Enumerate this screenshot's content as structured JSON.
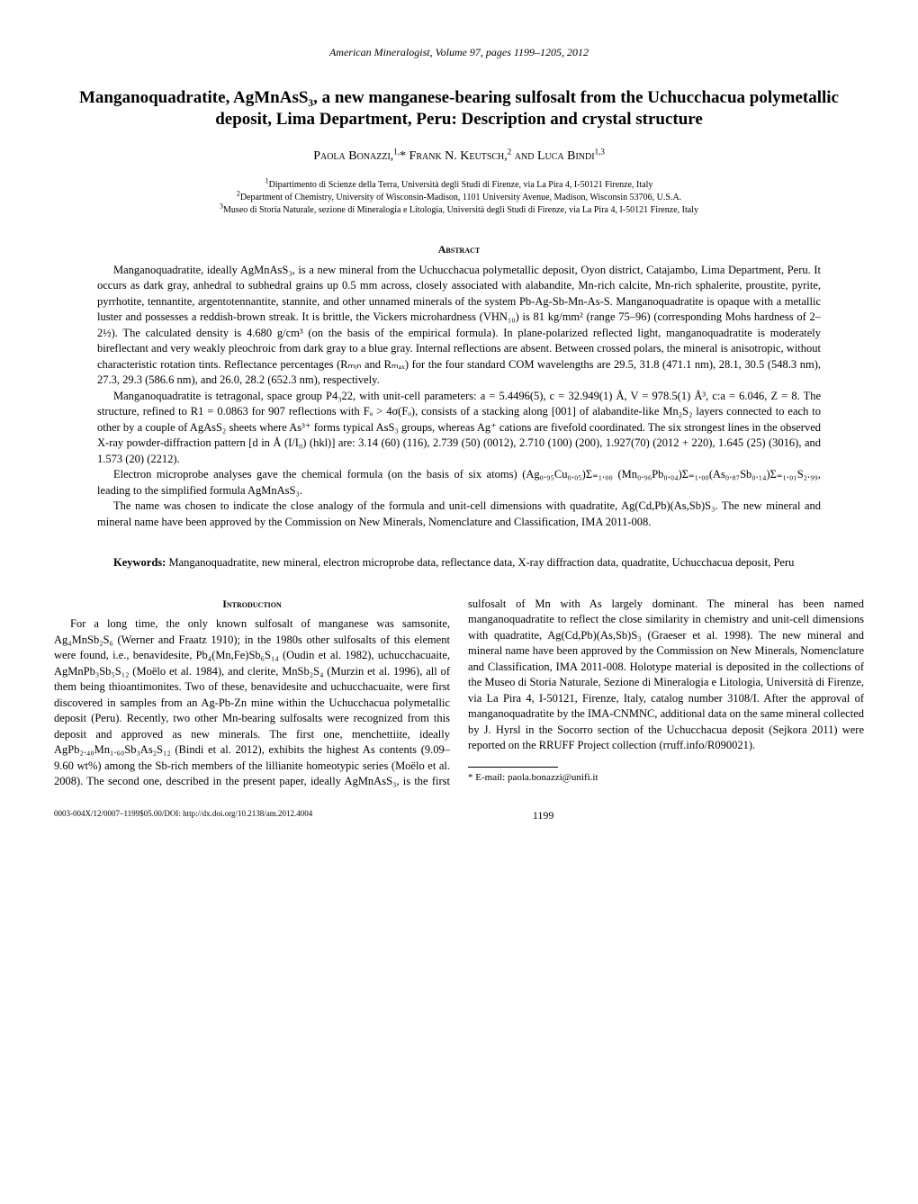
{
  "journal_header": "American Mineralogist, Volume 97, pages 1199–1205, 2012",
  "title": "Manganoquadratite, AgMnAsS₃, a new manganese-bearing sulfosalt from the Uchucchacua polymetallic deposit, Lima Department, Peru: Description and crystal structure",
  "authors_html": "Paola Bonazzi,<sup>1,</sup>* Frank N. Keutsch,<sup>2</sup> and Luca Bindi<sup>1,3</sup>",
  "affiliations": {
    "a1": "Dipartimento di Scienze della Terra, Università degli Studi di Firenze, via La Pira 4, I-50121 Firenze, Italy",
    "a2": "Department of Chemistry, University of Wisconsin-Madison, 1101 University Avenue, Madison, Wisconsin 53706, U.S.A.",
    "a3": "Museo di Storia Naturale, sezione di Mineralogia e Litologia, Università degli Studi di Firenze, via La Pira 4, I-50121 Firenze, Italy"
  },
  "abstract_heading": "Abstract",
  "abstract_p1": "Manganoquadratite, ideally AgMnAsS₃, is a new mineral from the Uchucchacua polymetallic deposit, Oyon district, Catajambo, Lima Department, Peru. It occurs as dark gray, anhedral to subhedral grains up 0.5 mm across, closely associated with alabandite, Mn-rich calcite, Mn-rich sphalerite, proustite, pyrite, pyrrhotite, tennantite, argentotennantite, stannite, and other unnamed minerals of the system Pb-Ag-Sb-Mn-As-S. Manganoquadratite is opaque with a metallic luster and possesses a reddish-brown streak. It is brittle, the Vickers microhardness (VHN₁₀) is 81 kg/mm² (range 75–96) (corresponding Mohs hardness of 2–2½). The calculated density is 4.680 g/cm³ (on the basis of the empirical formula). In plane-polarized reflected light, manganoquadratite is moderately bireflectant and very weakly pleochroic from dark gray to a blue gray. Internal reflections are absent. Between crossed polars, the mineral is anisotropic, without characteristic rotation tints. Reflectance percentages (Rₘᵢₙ and Rₘₐₓ) for the four standard COM wavelengths are 29.5, 31.8 (471.1 nm), 28.1, 30.5 (548.3 nm), 27.3, 29.3 (586.6 nm), and 26.0, 28.2 (652.3 nm), respectively.",
  "abstract_p2": "Manganoquadratite is tetragonal, space group P4₃22, with unit-cell parameters: a = 5.4496(5), c = 32.949(1) Å, V = 978.5(1) Å³, c:a = 6.046, Z = 8. The structure, refined to R1 = 0.0863 for 907 reflections with Fₒ > 4σ(Fₒ), consists of a stacking along [001] of alabandite-like Mn₂S₂ layers connected to each to other by a couple of AgAsS₂ sheets where As³⁺ forms typical AsS₃ groups, whereas Ag⁺ cations are fivefold coordinated. The six strongest lines in the observed X-ray powder-diffraction pattern [d in Å (I/I₀) (hkl)] are: 3.14 (60) (116), 2.739 (50) (0012), 2.710 (100) (200), 1.927(70) (2012 + 220), 1.645 (25) (3016), and 1.573 (20) (2212).",
  "abstract_p3": "Electron microprobe analyses gave the chemical formula (on the basis of six atoms) (Ag₀.₉₅Cu₀.₀₅)Σ₌₁.₀₀ (Mn₀.₉₆Pb₀.₀₄)Σ₌₁.₀₀(As₀.₈₇Sb₀.₁₄)Σ₌₁.₀₁S₂.₉₉, leading to the simplified formula AgMnAsS₃.",
  "abstract_p4": "The name was chosen to indicate the close analogy of the formula and unit-cell dimensions with quadratite, Ag(Cd,Pb)(As,Sb)S₃. The new mineral and mineral name have been approved by the Commission on New Minerals, Nomenclature and Classification, IMA 2011-008.",
  "keywords_label": "Keywords:",
  "keywords_text": " Manganoquadratite, new mineral, electron microprobe data, reflectance data, X-ray diffraction data, quadratite, Uchucchacua deposit, Peru",
  "intro_heading": "Introduction",
  "intro_text": "For a long time, the only known sulfosalt of manganese was samsonite, Ag₄MnSb₂S₆ (Werner and Fraatz 1910); in the 1980s other sulfosalts of this element were found, i.e., benavidesite, Pb₄(Mn,Fe)Sb₆S₁₄ (Oudin et al. 1982), uchucchacuaite, AgMnPb₃Sb₅S₁₂ (Moëlo et al. 1984), and clerite, MnSb₂S₄ (Murzin et al. 1996), all of them being thioantimonites. Two of these, benavidesite and uchucchacuaite, were first discovered in samples from an Ag-Pb-Zn mine within the Uchucchacua polymetallic deposit (Peru). Recently, two other Mn-bearing sulfosalts were recognized from this deposit and approved as new minerals. The first one, menchettiite, ideally AgPb₂.₄₀Mn₁.₆₀Sb₃As₂S₁₂ (Bindi et al. 2012), exhibits the highest As contents (9.09–9.60 wt%) among the Sb-rich members of the lillianite homeotypic series (Moëlo et al. 2008). The second one, described in the present paper, ideally AgMnAsS₃, is the first sulfosalt of Mn with As largely dominant. The mineral has been named manganoquadratite to reflect the close similarity in chemistry and unit-cell dimensions with quadratite, Ag(Cd,Pb)(As,Sb)S₃ (Graeser et al. 1998). The new mineral and mineral name have been approved by the Commission on New Minerals, Nomenclature and Classification, IMA 2011-008. Holotype material is deposited in the collections of the Museo di Storia Naturale, Sezione di Mineralogia e Litologia, Università di Firenze, via La Pira 4, I-50121, Firenze, Italy, catalog number 3108/I. After the approval of manganoquadratite by the IMA-CNMNC, additional data on the same mineral collected by J. Hyrsl in the Socorro section of the Uchucchacua deposit (Sejkora 2011) were reported on the RRUFF Project collection (rruff.info/R090021).",
  "footnote": "* E-mail: paola.bonazzi@unifi.it",
  "footer_doi": "0003-004X/12/0007–1199$05.00/DOI: http://dx.doi.org/10.2138/am.2012.4004",
  "page_number": "1199"
}
